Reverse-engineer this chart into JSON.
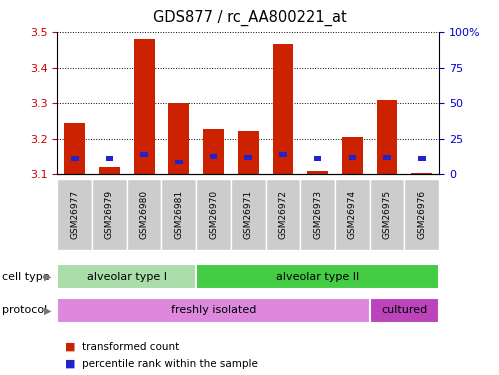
{
  "title": "GDS877 / rc_AA800221_at",
  "samples": [
    "GSM26977",
    "GSM26979",
    "GSM26980",
    "GSM26981",
    "GSM26970",
    "GSM26971",
    "GSM26972",
    "GSM26973",
    "GSM26974",
    "GSM26975",
    "GSM26976"
  ],
  "red_values": [
    3.245,
    3.12,
    3.48,
    3.3,
    3.228,
    3.222,
    3.465,
    3.11,
    3.205,
    3.31,
    3.105
  ],
  "blue_values": [
    3.145,
    3.145,
    3.155,
    3.135,
    3.15,
    3.148,
    3.155,
    3.145,
    3.148,
    3.148,
    3.145
  ],
  "bar_bottom": 3.1,
  "ylim_left": [
    3.1,
    3.5
  ],
  "ylim_right": [
    0,
    100
  ],
  "yticks_left": [
    3.1,
    3.2,
    3.3,
    3.4,
    3.5
  ],
  "yticks_right": [
    0,
    25,
    50,
    75,
    100
  ],
  "ytick_labels_right": [
    "0",
    "25",
    "50",
    "75",
    "100%"
  ],
  "cell_type_labels": [
    {
      "label": "alveolar type I",
      "start": 0,
      "end": 4,
      "color": "#aaddaa"
    },
    {
      "label": "alveolar type II",
      "start": 4,
      "end": 11,
      "color": "#44cc44"
    }
  ],
  "protocol_labels": [
    {
      "label": "freshly isolated",
      "start": 0,
      "end": 9,
      "color": "#dd88dd"
    },
    {
      "label": "cultured",
      "start": 9,
      "end": 11,
      "color": "#bb44bb"
    }
  ],
  "legend_red": "transformed count",
  "legend_blue": "percentile rank within the sample",
  "cell_type_row_label": "cell type",
  "protocol_row_label": "protocol",
  "bar_color_red": "#CC2200",
  "bar_color_blue": "#2222CC",
  "background_color": "#FFFFFF",
  "plot_bg": "#FFFFFF",
  "tick_color_left": "#CC0000",
  "tick_color_right": "#0000CC",
  "grid_color": "#000000",
  "sample_box_color": "#cccccc",
  "sample_box_edge": "#aaaaaa"
}
